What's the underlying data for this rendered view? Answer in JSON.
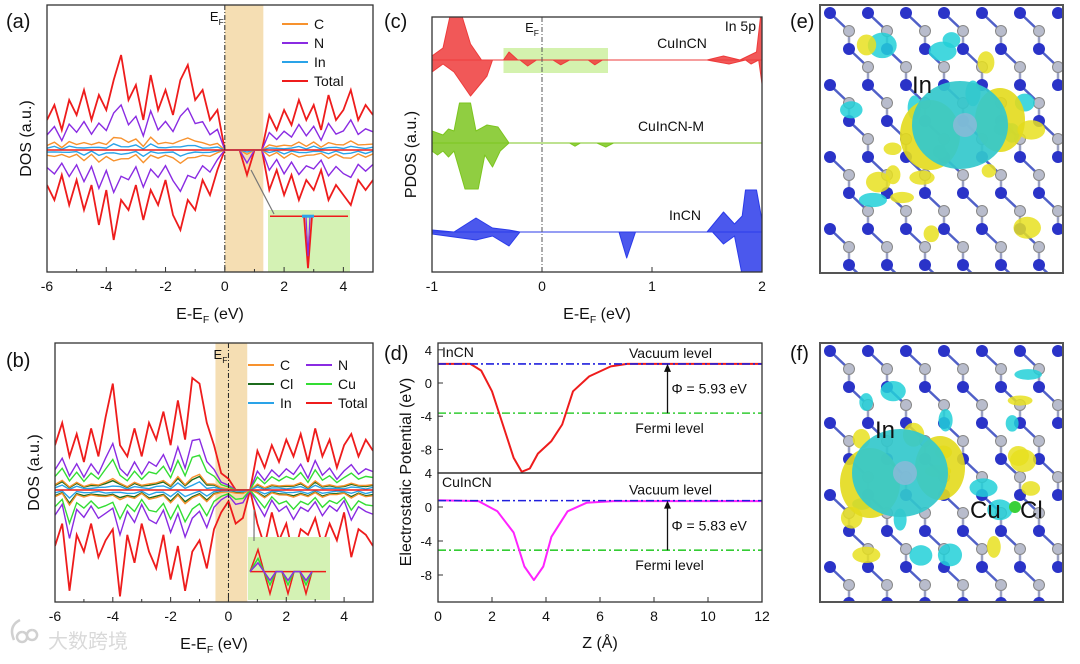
{
  "panel_labels": {
    "a": "(a)",
    "b": "(b)",
    "c": "(c)",
    "d": "(d)",
    "e": "(e)",
    "f": "(f)"
  },
  "watermark": "大数跨境",
  "colors": {
    "C": "#f7922e",
    "N": "#8a2be2",
    "In": "#2aa3e8",
    "Total": "#ee1c1c",
    "Cl": "#1c6b1c",
    "Cu": "#33dd33",
    "gap_shade": "#f5deb3",
    "inset_bg": "#d4f2b4",
    "vacuum_line": "#2020dd",
    "fermi_line": "#33cc33",
    "cuincn_pot": "#ff22ff",
    "incn_pot": "#ee1c1c"
  },
  "chart_data": [
    {
      "panel": "a",
      "type": "line",
      "xlabel": "E-E",
      "xlabel_sub": "F",
      "xlabel_unit": " (eV)",
      "ylabel": "DOS (a.u.)",
      "fermi_label": "E",
      "fermi_sub": "F",
      "xlim": [
        -6,
        5
      ],
      "xticks": [
        "-6",
        "-4",
        "-2",
        "0",
        "2",
        "4"
      ],
      "gap_shade_eV": [
        0,
        1.3
      ],
      "legend": [
        "C",
        "N",
        "In",
        "Total"
      ],
      "x_start": -6,
      "x_step": 0.25,
      "total_up": [
        0.3,
        0.45,
        0.2,
        0.5,
        0.35,
        0.6,
        0.3,
        0.55,
        0.4,
        0.7,
        0.95,
        0.5,
        0.65,
        0.3,
        0.75,
        0.4,
        0.6,
        0.35,
        0.7,
        0.85,
        0.5,
        0.6,
        0.3,
        0.4,
        0,
        0,
        0,
        0,
        0,
        0,
        0.35,
        0.2,
        0.4,
        0.25,
        0.5,
        0.3,
        0.45,
        0.2,
        0.55,
        0.3,
        0.4,
        0.6,
        0.3,
        0.45,
        0.35
      ],
      "total_down": [
        -0.35,
        -0.5,
        -0.25,
        -0.55,
        -0.3,
        -0.6,
        -0.35,
        -0.75,
        -0.4,
        -0.9,
        -0.5,
        -0.6,
        -0.35,
        -0.7,
        -0.4,
        -0.55,
        -0.3,
        -0.65,
        -0.8,
        -0.5,
        -0.6,
        -0.3,
        -0.45,
        -0.2,
        0,
        0,
        0,
        -0.25,
        0,
        0,
        -0.4,
        -0.2,
        -0.45,
        -0.25,
        -0.5,
        -0.3,
        -0.4,
        -0.2,
        -0.5,
        -0.35,
        -0.45,
        -0.55,
        -0.3,
        -0.4,
        -0.3
      ],
      "component_fraction": {
        "C": 0.15,
        "N": 0.5,
        "In": 0.06
      }
    },
    {
      "panel": "b",
      "type": "line",
      "xlabel": "E-E",
      "xlabel_sub": "F",
      "xlabel_unit": " (eV)",
      "ylabel": "DOS (a.u.)",
      "fermi_label": "E",
      "fermi_sub": "F",
      "xlim": [
        -6,
        5
      ],
      "xticks": [
        "-6",
        "-4",
        "-2",
        "0",
        "2",
        "4"
      ],
      "gap_shade_eV": [
        -0.45,
        0.65
      ],
      "legend": [
        "C",
        "N",
        "Cl",
        "Cu",
        "In",
        "Total"
      ],
      "x_start": -6,
      "x_step": 0.25,
      "total_up": [
        0.4,
        0.6,
        0.3,
        0.5,
        0.25,
        0.55,
        0.3,
        0.65,
        0.95,
        0.4,
        0.3,
        0.55,
        0.3,
        0.6,
        0.45,
        0.7,
        0.4,
        0.8,
        0.45,
        1.0,
        0.95,
        0.6,
        0.4,
        0.15,
        0.1,
        0,
        0,
        0,
        0.35,
        0.2,
        0.4,
        0.25,
        0.45,
        0.3,
        0.5,
        0.25,
        0.55,
        0.3,
        0.45,
        0.2,
        0.4,
        0.5,
        0.3,
        0.45,
        0.35
      ],
      "total_down": [
        -0.5,
        -0.3,
        -0.9,
        -0.4,
        -0.55,
        -0.3,
        -0.6,
        -0.45,
        -0.35,
        -0.95,
        -0.4,
        -0.65,
        -0.3,
        -0.55,
        -0.7,
        -0.4,
        -0.8,
        -0.5,
        -0.9,
        -0.55,
        -0.45,
        -0.7,
        -0.35,
        -0.2,
        -0.1,
        -0.3,
        -0.25,
        0,
        -0.3,
        -0.5,
        -0.2,
        -0.45,
        -0.3,
        -0.6,
        -0.35,
        -0.4,
        -0.25,
        -0.5,
        -0.3,
        -0.45,
        -0.2,
        -0.6,
        -0.35,
        -0.4,
        -0.5
      ],
      "component_fraction": {
        "C": 0.12,
        "N": 0.45,
        "Cl": 0.1,
        "Cu": 0.3,
        "In": 0.05
      }
    },
    {
      "panel": "c",
      "type": "area",
      "xlabel": "E-E",
      "xlabel_sub": "F",
      "xlabel_unit": " (eV)",
      "ylabel": "PDOS (a.u.)",
      "fermi_label": "E",
      "fermi_sub": "F",
      "annotation": "In 5p",
      "xlim": [
        -1,
        2
      ],
      "xticks": [
        "-1",
        "0",
        "1",
        "2"
      ],
      "highlight_eV": [
        -0.35,
        0.6
      ],
      "series": [
        {
          "name": "CuInCN",
          "color": "#ee3b3b",
          "upper": [
            [
              -1,
              0.1
            ],
            [
              -0.9,
              0.3
            ],
            [
              -0.82,
              1.3
            ],
            [
              -0.75,
              1.3
            ],
            [
              -0.65,
              0.4
            ],
            [
              -0.55,
              0
            ],
            [
              -0.35,
              0
            ],
            [
              -0.3,
              0.2
            ],
            [
              -0.22,
              0
            ],
            [
              1.5,
              0
            ],
            [
              1.65,
              0.1
            ],
            [
              1.8,
              0
            ],
            [
              1.95,
              0.2
            ],
            [
              2,
              1.4
            ]
          ],
          "lower": [
            [
              -1,
              -0.3
            ],
            [
              -0.9,
              -0.1
            ],
            [
              -0.8,
              -0.3
            ],
            [
              -0.65,
              -0.9
            ],
            [
              -0.5,
              -0.4
            ],
            [
              -0.45,
              0
            ],
            [
              -0.2,
              0
            ],
            [
              -0.13,
              -0.15
            ],
            [
              -0.05,
              0
            ],
            [
              0.1,
              0
            ],
            [
              0.17,
              -0.12
            ],
            [
              0.25,
              0
            ],
            [
              0.42,
              0
            ],
            [
              0.48,
              -0.12
            ],
            [
              0.55,
              0
            ],
            [
              1.5,
              0
            ],
            [
              1.7,
              -0.1
            ],
            [
              1.85,
              0
            ],
            [
              1.9,
              -0.1
            ],
            [
              1.97,
              0
            ],
            [
              2,
              -0.6
            ]
          ]
        },
        {
          "name": "CuInCN-M",
          "color": "#7cc520",
          "upper": [
            [
              -1,
              0.3
            ],
            [
              -0.9,
              0.2
            ],
            [
              -0.85,
              0.35
            ],
            [
              -0.8,
              0.3
            ],
            [
              -0.75,
              1.0
            ],
            [
              -0.65,
              1.0
            ],
            [
              -0.6,
              0.3
            ],
            [
              -0.5,
              0.45
            ],
            [
              -0.4,
              0.4
            ],
            [
              -0.3,
              0
            ],
            [
              2,
              0
            ]
          ],
          "lower": [
            [
              -1,
              -0.2
            ],
            [
              -0.95,
              -0.3
            ],
            [
              -0.9,
              -0.2
            ],
            [
              -0.85,
              -0.35
            ],
            [
              -0.8,
              -0.2
            ],
            [
              -0.7,
              -1.15
            ],
            [
              -0.58,
              -1.15
            ],
            [
              -0.52,
              -0.3
            ],
            [
              -0.45,
              -0.6
            ],
            [
              -0.38,
              -0.2
            ],
            [
              -0.3,
              0
            ],
            [
              0.25,
              0
            ],
            [
              0.3,
              -0.08
            ],
            [
              0.35,
              0
            ],
            [
              0.5,
              0
            ],
            [
              0.58,
              -0.1
            ],
            [
              0.65,
              0
            ],
            [
              2,
              0
            ]
          ]
        },
        {
          "name": "InCN",
          "color": "#2b3bea",
          "upper": [
            [
              -1,
              0.05
            ],
            [
              -0.8,
              0
            ],
            [
              -0.6,
              0.35
            ],
            [
              -0.45,
              0.1
            ],
            [
              -0.3,
              0.05
            ],
            [
              -0.2,
              0
            ],
            [
              1.5,
              0
            ],
            [
              1.65,
              0.5
            ],
            [
              1.75,
              0.2
            ],
            [
              1.82,
              0.4
            ],
            [
              1.85,
              1.05
            ],
            [
              1.95,
              1.05
            ],
            [
              2,
              0.3
            ]
          ],
          "lower": [
            [
              -1,
              -0.05
            ],
            [
              -0.6,
              -0.2
            ],
            [
              -0.45,
              -0.1
            ],
            [
              -0.3,
              -0.35
            ],
            [
              -0.2,
              0
            ],
            [
              0.7,
              0
            ],
            [
              0.77,
              -0.65
            ],
            [
              0.85,
              0
            ],
            [
              1.55,
              0
            ],
            [
              1.65,
              -0.3
            ],
            [
              1.75,
              -0.1
            ],
            [
              1.85,
              -1.5
            ],
            [
              2,
              -1.5
            ]
          ]
        }
      ]
    },
    {
      "panel": "d",
      "type": "line",
      "xlabel": "Z (Å)",
      "ylabel": "Electrostatic Potential (eV)",
      "xlim": [
        0,
        12
      ],
      "xticks": [
        "0",
        "2",
        "4",
        "6",
        "8",
        "10",
        "12"
      ],
      "yticks": [
        "4",
        "0",
        "-4",
        "-8"
      ],
      "subplots": [
        {
          "name": "InCN",
          "vacuum_level": 2.3,
          "fermi_level": -3.63,
          "work_function_label": "Φ = 5.93 eV",
          "vacuum_label": "Vacuum level",
          "fermi_label": "Fermi level",
          "points": [
            [
              0,
              2.3
            ],
            [
              1.2,
              2.3
            ],
            [
              1.6,
              1.5
            ],
            [
              2,
              -1
            ],
            [
              2.4,
              -5
            ],
            [
              2.8,
              -9
            ],
            [
              3.1,
              -10.7
            ],
            [
              3.4,
              -10.3
            ],
            [
              3.7,
              -8.5
            ],
            [
              4.2,
              -7
            ],
            [
              4.6,
              -5
            ],
            [
              5,
              -1
            ],
            [
              5.6,
              0.8
            ],
            [
              6.4,
              2
            ],
            [
              7,
              2.3
            ],
            [
              12,
              2.3
            ]
          ]
        },
        {
          "name": "CuInCN",
          "vacuum_level": 0.75,
          "fermi_level": -5.08,
          "work_function_label": "Φ = 5.83 eV",
          "vacuum_label": "Vacuum level",
          "fermi_label": "Fermi level",
          "points": [
            [
              0,
              0.8
            ],
            [
              1.5,
              0.7
            ],
            [
              2.2,
              -0.5
            ],
            [
              2.8,
              -3
            ],
            [
              3.2,
              -7
            ],
            [
              3.55,
              -8.6
            ],
            [
              3.9,
              -7
            ],
            [
              4.2,
              -3.5
            ],
            [
              4.8,
              -0.5
            ],
            [
              5.5,
              0.5
            ],
            [
              6.5,
              0.7
            ],
            [
              12,
              0.7
            ]
          ]
        }
      ]
    }
  ],
  "structures": {
    "e": {
      "labels": [
        "In"
      ]
    },
    "f": {
      "labels": [
        "In",
        "Cu",
        "Cl"
      ]
    }
  }
}
